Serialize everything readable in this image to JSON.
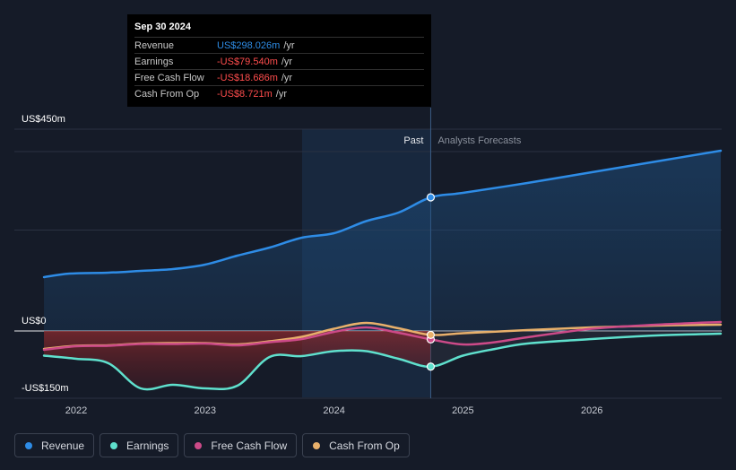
{
  "tooltip": {
    "date": "Sep 30 2024",
    "rows": [
      {
        "label": "Revenue",
        "value": "US$298.026m",
        "unit": "/yr",
        "color": "#2e8ce6"
      },
      {
        "label": "Earnings",
        "value": "-US$79.540m",
        "unit": "/yr",
        "color": "#ff4d4d"
      },
      {
        "label": "Free Cash Flow",
        "value": "-US$18.686m",
        "unit": "/yr",
        "color": "#ff4d4d"
      },
      {
        "label": "Cash From Op",
        "value": "-US$8.721m",
        "unit": "/yr",
        "color": "#ff4d4d"
      }
    ]
  },
  "chart_data": {
    "type": "line",
    "y_axis_labels": {
      "top": "US$450m",
      "zero": "US$0",
      "bottom": "-US$150m"
    },
    "ylim": [
      -150,
      450
    ],
    "past_label": "Past",
    "forecast_label": "Analysts Forecasts",
    "divider_x": 2024.75,
    "xlim": [
      2021.5,
      2027.0
    ],
    "x_ticks": [
      {
        "value": 2022,
        "label": "2022"
      },
      {
        "value": 2023,
        "label": "2023"
      },
      {
        "value": 2024,
        "label": "2024"
      },
      {
        "value": 2025,
        "label": "2025"
      },
      {
        "value": 2026,
        "label": "2026"
      }
    ],
    "series": [
      {
        "name": "Revenue",
        "color": "#2e8ce6",
        "points": [
          [
            2021.75,
            120
          ],
          [
            2021.95,
            128
          ],
          [
            2022.25,
            130
          ],
          [
            2022.5,
            134
          ],
          [
            2022.75,
            138
          ],
          [
            2023.0,
            148
          ],
          [
            2023.25,
            168
          ],
          [
            2023.5,
            186
          ],
          [
            2023.75,
            208
          ],
          [
            2024.0,
            218
          ],
          [
            2024.25,
            245
          ],
          [
            2024.5,
            264
          ],
          [
            2024.75,
            298
          ],
          [
            2025.0,
            308
          ],
          [
            2025.5,
            330
          ],
          [
            2026.0,
            354
          ],
          [
            2026.5,
            378
          ],
          [
            2027.0,
            402
          ]
        ]
      },
      {
        "name": "Earnings",
        "color": "#5fe0cd",
        "points": [
          [
            2021.75,
            -55
          ],
          [
            2022.0,
            -62
          ],
          [
            2022.25,
            -72
          ],
          [
            2022.5,
            -128
          ],
          [
            2022.75,
            -120
          ],
          [
            2023.0,
            -128
          ],
          [
            2023.25,
            -122
          ],
          [
            2023.5,
            -58
          ],
          [
            2023.75,
            -56
          ],
          [
            2024.0,
            -45
          ],
          [
            2024.25,
            -45
          ],
          [
            2024.5,
            -62
          ],
          [
            2024.75,
            -79.54
          ],
          [
            2025.0,
            -55
          ],
          [
            2025.25,
            -40
          ],
          [
            2025.5,
            -28
          ],
          [
            2026.0,
            -18
          ],
          [
            2026.5,
            -10
          ],
          [
            2027.0,
            -6
          ]
        ]
      },
      {
        "name": "Free Cash Flow",
        "color": "#cc4a88",
        "points": [
          [
            2021.75,
            -42
          ],
          [
            2022.0,
            -34
          ],
          [
            2022.25,
            -33
          ],
          [
            2022.5,
            -29
          ],
          [
            2022.75,
            -29
          ],
          [
            2023.0,
            -28
          ],
          [
            2023.25,
            -32
          ],
          [
            2023.5,
            -25
          ],
          [
            2023.75,
            -18
          ],
          [
            2024.0,
            -2
          ],
          [
            2024.25,
            8
          ],
          [
            2024.5,
            -4
          ],
          [
            2024.75,
            -18.686
          ],
          [
            2025.0,
            -30
          ],
          [
            2025.25,
            -25
          ],
          [
            2025.5,
            -14
          ],
          [
            2026.0,
            5
          ],
          [
            2026.5,
            14
          ],
          [
            2027.0,
            20
          ]
        ]
      },
      {
        "name": "Cash From Op",
        "color": "#e8b06b",
        "points": [
          [
            2021.75,
            -40
          ],
          [
            2022.0,
            -33
          ],
          [
            2022.25,
            -32
          ],
          [
            2022.5,
            -28
          ],
          [
            2022.75,
            -27
          ],
          [
            2023.0,
            -27
          ],
          [
            2023.25,
            -30
          ],
          [
            2023.5,
            -23
          ],
          [
            2023.75,
            -13
          ],
          [
            2024.0,
            5
          ],
          [
            2024.25,
            18
          ],
          [
            2024.5,
            6
          ],
          [
            2024.75,
            -8.721
          ],
          [
            2025.0,
            -5
          ],
          [
            2025.5,
            2
          ],
          [
            2026.0,
            8
          ],
          [
            2026.5,
            12
          ],
          [
            2027.0,
            14
          ]
        ]
      }
    ]
  },
  "legend": [
    {
      "label": "Revenue",
      "color": "#2e8ce6"
    },
    {
      "label": "Earnings",
      "color": "#5fe0cd"
    },
    {
      "label": "Free Cash Flow",
      "color": "#cc4a88"
    },
    {
      "label": "Cash From Op",
      "color": "#e8b06b"
    }
  ]
}
